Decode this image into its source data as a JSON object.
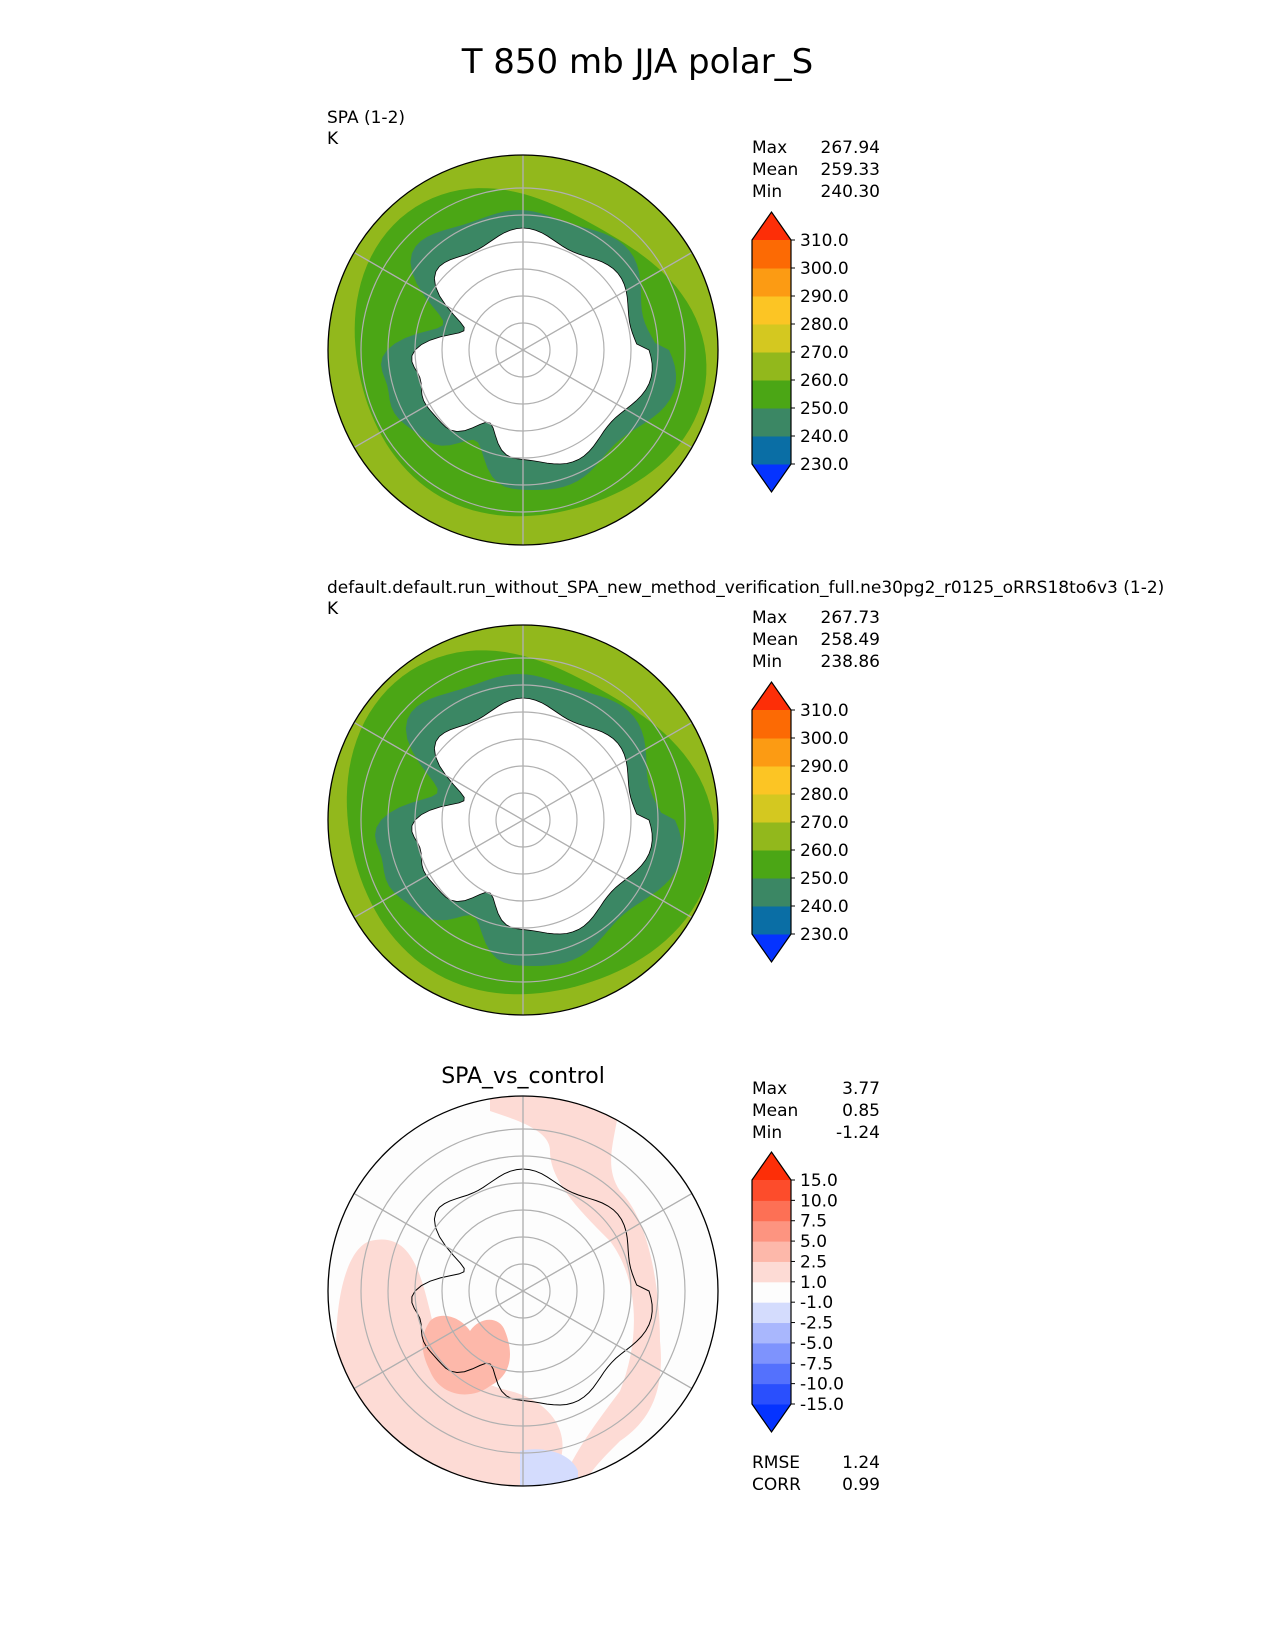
{
  "figure": {
    "title": "T 850 mb JJA polar_S"
  },
  "panels": [
    {
      "id": "test",
      "name": "SPA (1-2)",
      "units": "K",
      "stats": [
        {
          "label": "Max",
          "value": "267.94"
        },
        {
          "label": "Mean",
          "value": "259.33"
        },
        {
          "label": "Min",
          "value": "240.30"
        }
      ],
      "colorbar_ticks": [
        "310.0",
        "300.0",
        "290.0",
        "280.0",
        "270.0",
        "260.0",
        "250.0",
        "240.0",
        "230.0"
      ]
    },
    {
      "id": "reference",
      "name": "default.default.run_without_SPA_new_method_verification_full.ne30pg2_r0125_oRRS18to6v3 (1-2)",
      "units": "K",
      "stats": [
        {
          "label": "Max",
          "value": "267.73"
        },
        {
          "label": "Mean",
          "value": "258.49"
        },
        {
          "label": "Min",
          "value": "238.86"
        }
      ],
      "colorbar_ticks": [
        "310.0",
        "300.0",
        "290.0",
        "280.0",
        "270.0",
        "260.0",
        "250.0",
        "240.0",
        "230.0"
      ]
    },
    {
      "id": "diff",
      "title": "SPA_vs_control",
      "stats": [
        {
          "label": "Max",
          "value": "3.77"
        },
        {
          "label": "Mean",
          "value": "0.85"
        },
        {
          "label": "Min",
          "value": "-1.24"
        }
      ],
      "colorbar_ticks": [
        "15.0",
        "10.0",
        "7.5",
        "5.0",
        "2.5",
        "1.0",
        "-1.0",
        "-2.5",
        "-5.0",
        "-7.5",
        "-10.0",
        "-15.0"
      ],
      "metrics": [
        {
          "label": "RMSE",
          "value": "1.24"
        },
        {
          "label": "CORR",
          "value": "0.99"
        }
      ]
    }
  ],
  "chart_data": [
    {
      "type": "heatmap",
      "projection": "south polar stereographic",
      "title": "SPA (1-2)",
      "units": "K",
      "levels": [
        230,
        240,
        250,
        260,
        270,
        280,
        290,
        300,
        310
      ],
      "extend": "both",
      "stats": {
        "max": 267.94,
        "mean": 259.33,
        "min": 240.3
      },
      "bands_outer_to_inner": [
        {
          "range": [
            260,
            270
          ],
          "color": "#92b81c"
        },
        {
          "range": [
            250,
            260
          ],
          "color": "#4ba615"
        },
        {
          "range": [
            240,
            250
          ],
          "color": "#3b8764"
        },
        {
          "range": "masked (topography above 850 mb)",
          "color": "#ffffff"
        }
      ]
    },
    {
      "type": "heatmap",
      "projection": "south polar stereographic",
      "title": "default.default.run_without_SPA_new_method_verification_full.ne30pg2_r0125_oRRS18to6v3 (1-2)",
      "units": "K",
      "levels": [
        230,
        240,
        250,
        260,
        270,
        280,
        290,
        300,
        310
      ],
      "extend": "both",
      "stats": {
        "max": 267.73,
        "mean": 258.49,
        "min": 238.86
      },
      "bands_outer_to_inner": [
        {
          "range": [
            260,
            270
          ],
          "color": "#92b81c"
        },
        {
          "range": [
            250,
            260
          ],
          "color": "#4ba615"
        },
        {
          "range": [
            240,
            250
          ],
          "color": "#3b8764"
        },
        {
          "range": "masked (topography above 850 mb)",
          "color": "#ffffff"
        }
      ]
    },
    {
      "type": "heatmap",
      "projection": "south polar stereographic",
      "title": "SPA_vs_control",
      "levels": [
        -15,
        -10,
        -7.5,
        -5,
        -2.5,
        -1,
        1,
        2.5,
        5,
        7.5,
        10,
        15
      ],
      "extend": "both",
      "stats": {
        "max": 3.77,
        "mean": 0.85,
        "min": -1.24
      },
      "metrics": {
        "rmse": 1.24,
        "corr": 0.99
      },
      "regions": [
        {
          "range": [
            -1,
            1
          ],
          "color": "#fdfdfd"
        },
        {
          "range": [
            1,
            2.5
          ],
          "color": "#fddbd5"
        },
        {
          "range": [
            2.5,
            5
          ],
          "color": "#fdb8aa"
        },
        {
          "range": [
            -2.5,
            -1
          ],
          "color": "#d4dcfd"
        }
      ]
    }
  ],
  "colors": {
    "temp_colorbar_bottom_to_top": [
      "#0533ff",
      "#0a6ea5",
      "#3b8764",
      "#4ba615",
      "#92b81c",
      "#d4c820",
      "#fcc524",
      "#fc9b13",
      "#fc6a04",
      "#fd2e07"
    ],
    "diff_colorbar_bottom_to_top": [
      "#0533ff",
      "#2a4ffd",
      "#5471fd",
      "#7e93fd",
      "#a9b7fd",
      "#d4dcfd",
      "#fdfdfd",
      "#fddbd5",
      "#fdb8aa",
      "#fd9480",
      "#fd7055",
      "#fd4c2b",
      "#fd2e07"
    ],
    "gridline": "#b0b0b0"
  }
}
